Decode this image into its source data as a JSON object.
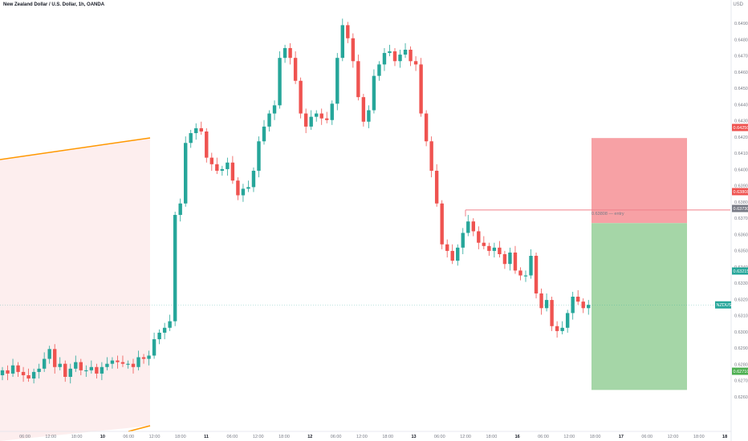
{
  "header": {
    "title": "New Zealand Dollar / U.S. Dollar, 1h, OANDA",
    "scale_label": "USD"
  },
  "colors": {
    "up": "#26a69a",
    "down": "#ef5350",
    "channel_line": "#ff9800",
    "channel_fill": "#fdeeee",
    "stop_zone": "#f7a1a5",
    "target_zone": "#a5d6a7",
    "entry_line": "#f0818a",
    "axis_text": "#787b86"
  },
  "chart_data": {
    "type": "candlestick",
    "title": "New Zealand Dollar / U.S. Dollar, 1h, OANDA",
    "y_unit": "USD",
    "ylim": [
      0.6254,
      0.6504
    ],
    "x_ticks": [
      "06:00",
      "12:00",
      "18:00",
      "10",
      "06:00",
      "12:00",
      "18:00",
      "11",
      "06:00",
      "12:00",
      "18:00",
      "12",
      "06:00",
      "12:00",
      "18:00",
      "13",
      "06:00",
      "12:00",
      "18:00",
      "16",
      "06:00",
      "12:00",
      "18:00",
      "17",
      "06:00",
      "12:00",
      "18:00",
      "18"
    ],
    "y_ticks": [
      "0.64900",
      "0.64800",
      "0.64700",
      "0.64600",
      "0.64500",
      "0.64400",
      "0.64300",
      "0.64200",
      "0.64100",
      "0.64000",
      "0.63900",
      "0.63800",
      "0.63700",
      "0.63600",
      "0.63500",
      "0.63400",
      "0.63300",
      "0.63200",
      "0.63100",
      "0.63000",
      "0.62900",
      "0.62800",
      "0.62700",
      "0.62600"
    ],
    "closes": [
      0.6283,
      0.6281,
      0.6286,
      0.6282,
      0.628,
      0.6278,
      0.6282,
      0.6284,
      0.629,
      0.6296,
      0.6285,
      0.6287,
      0.6279,
      0.6284,
      0.6288,
      0.6283,
      0.6283,
      0.6285,
      0.6281,
      0.6285,
      0.6287,
      0.6289,
      0.6288,
      0.6287,
      0.6287,
      0.6285,
      0.6291,
      0.629,
      0.6292,
      0.6302,
      0.6306,
      0.6309,
      0.6313,
      0.6378,
      0.6385,
      0.6422,
      0.6428,
      0.6431,
      0.6429,
      0.6413,
      0.6409,
      0.6405,
      0.6406,
      0.641,
      0.6399,
      0.639,
      0.6394,
      0.6395,
      0.6405,
      0.6423,
      0.6432,
      0.644,
      0.6445,
      0.6474,
      0.648,
      0.6474,
      0.646,
      0.644,
      0.6432,
      0.6438,
      0.644,
      0.6437,
      0.6436,
      0.6446,
      0.6474,
      0.6494,
      0.6486,
      0.6472,
      0.645,
      0.6435,
      0.6442,
      0.6463,
      0.647,
      0.6477,
      0.6478,
      0.6472,
      0.6476,
      0.6479,
      0.6472,
      0.647,
      0.644,
      0.6423,
      0.6405,
      0.6385,
      0.636,
      0.6356,
      0.635,
      0.6358,
      0.6367,
      0.6374,
      0.6368,
      0.6361,
      0.6359,
      0.6356,
      0.6358,
      0.6354,
      0.6348,
      0.6355,
      0.6344,
      0.6341,
      0.6341,
      0.6353,
      0.633,
      0.6321,
      0.6326,
      0.631,
      0.6307,
      0.6309,
      0.6318,
      0.6328,
      0.6325,
      0.6321,
      0.6323
    ],
    "price_badges": [
      {
        "value": "0.64250",
        "kind": "stop"
      },
      {
        "value": "0.63808",
        "kind": "entry"
      },
      {
        "value": "0.63730",
        "kind": "level"
      },
      {
        "value": "0.63215",
        "kind": "current"
      },
      {
        "value": "0.62710",
        "kind": "target"
      }
    ],
    "current_price_label": "NZDUSD",
    "position": {
      "entry": 0.6381,
      "stop": 0.6425,
      "target": 0.6271
    },
    "annotation": "0.63808 — entry",
    "grid": false
  }
}
